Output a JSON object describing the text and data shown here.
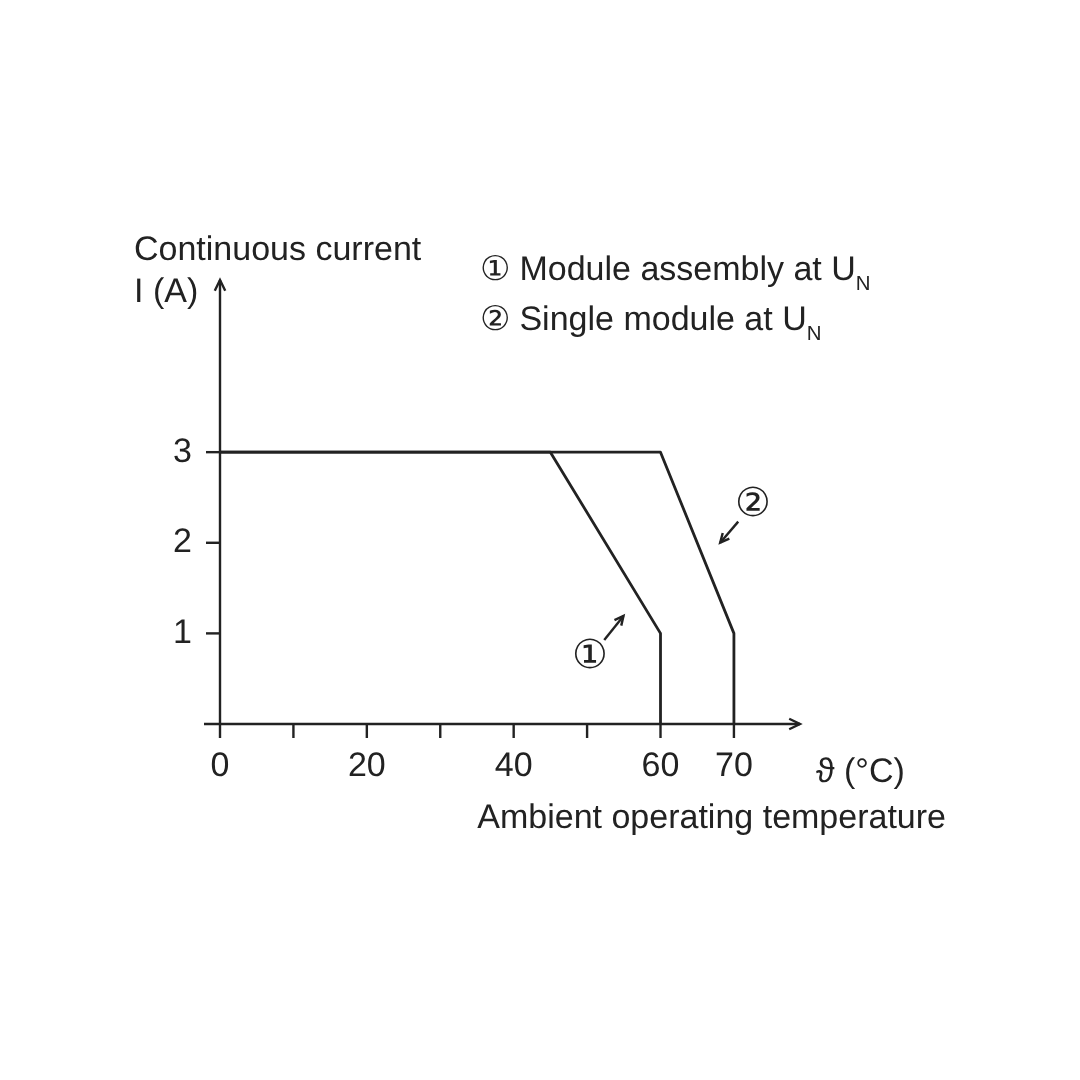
{
  "chart_data": {
    "type": "line",
    "xlabel": "ϑ (°C)\nAmbient operating temperature",
    "ylabel": "Continuous current\nI (A)",
    "series": [
      {
        "color": "#222222",
        "x": [
          0,
          45,
          60,
          60
        ],
        "values": [
          3,
          3,
          1,
          0
        ]
      },
      {
        "color": "#222222",
        "x": [
          0,
          60,
          70,
          70
        ],
        "values": [
          3,
          3,
          1,
          0
        ]
      }
    ],
    "xlim": [
      0,
      79
    ],
    "ylim": [
      0,
      4.9
    ],
    "xticks": [
      0,
      {
        "value": 10,
        "label": null
      },
      20,
      {
        "value": 30,
        "label": null
      },
      40,
      {
        "value": 50,
        "label": null
      },
      60,
      70
    ],
    "yticks": [
      1,
      2,
      3
    ],
    "grid": false,
    "legend": false,
    "marker": "none",
    "line_style": "solid",
    "annotations": [
      "① Module assembly at U$_{N}$",
      "② Single module at U$_{N}$",
      {
        "text": "①",
        "x": 57,
        "y": 1.4
      },
      {
        "text": "②",
        "x": 66,
        "y": 1.8
      }
    ]
  }
}
